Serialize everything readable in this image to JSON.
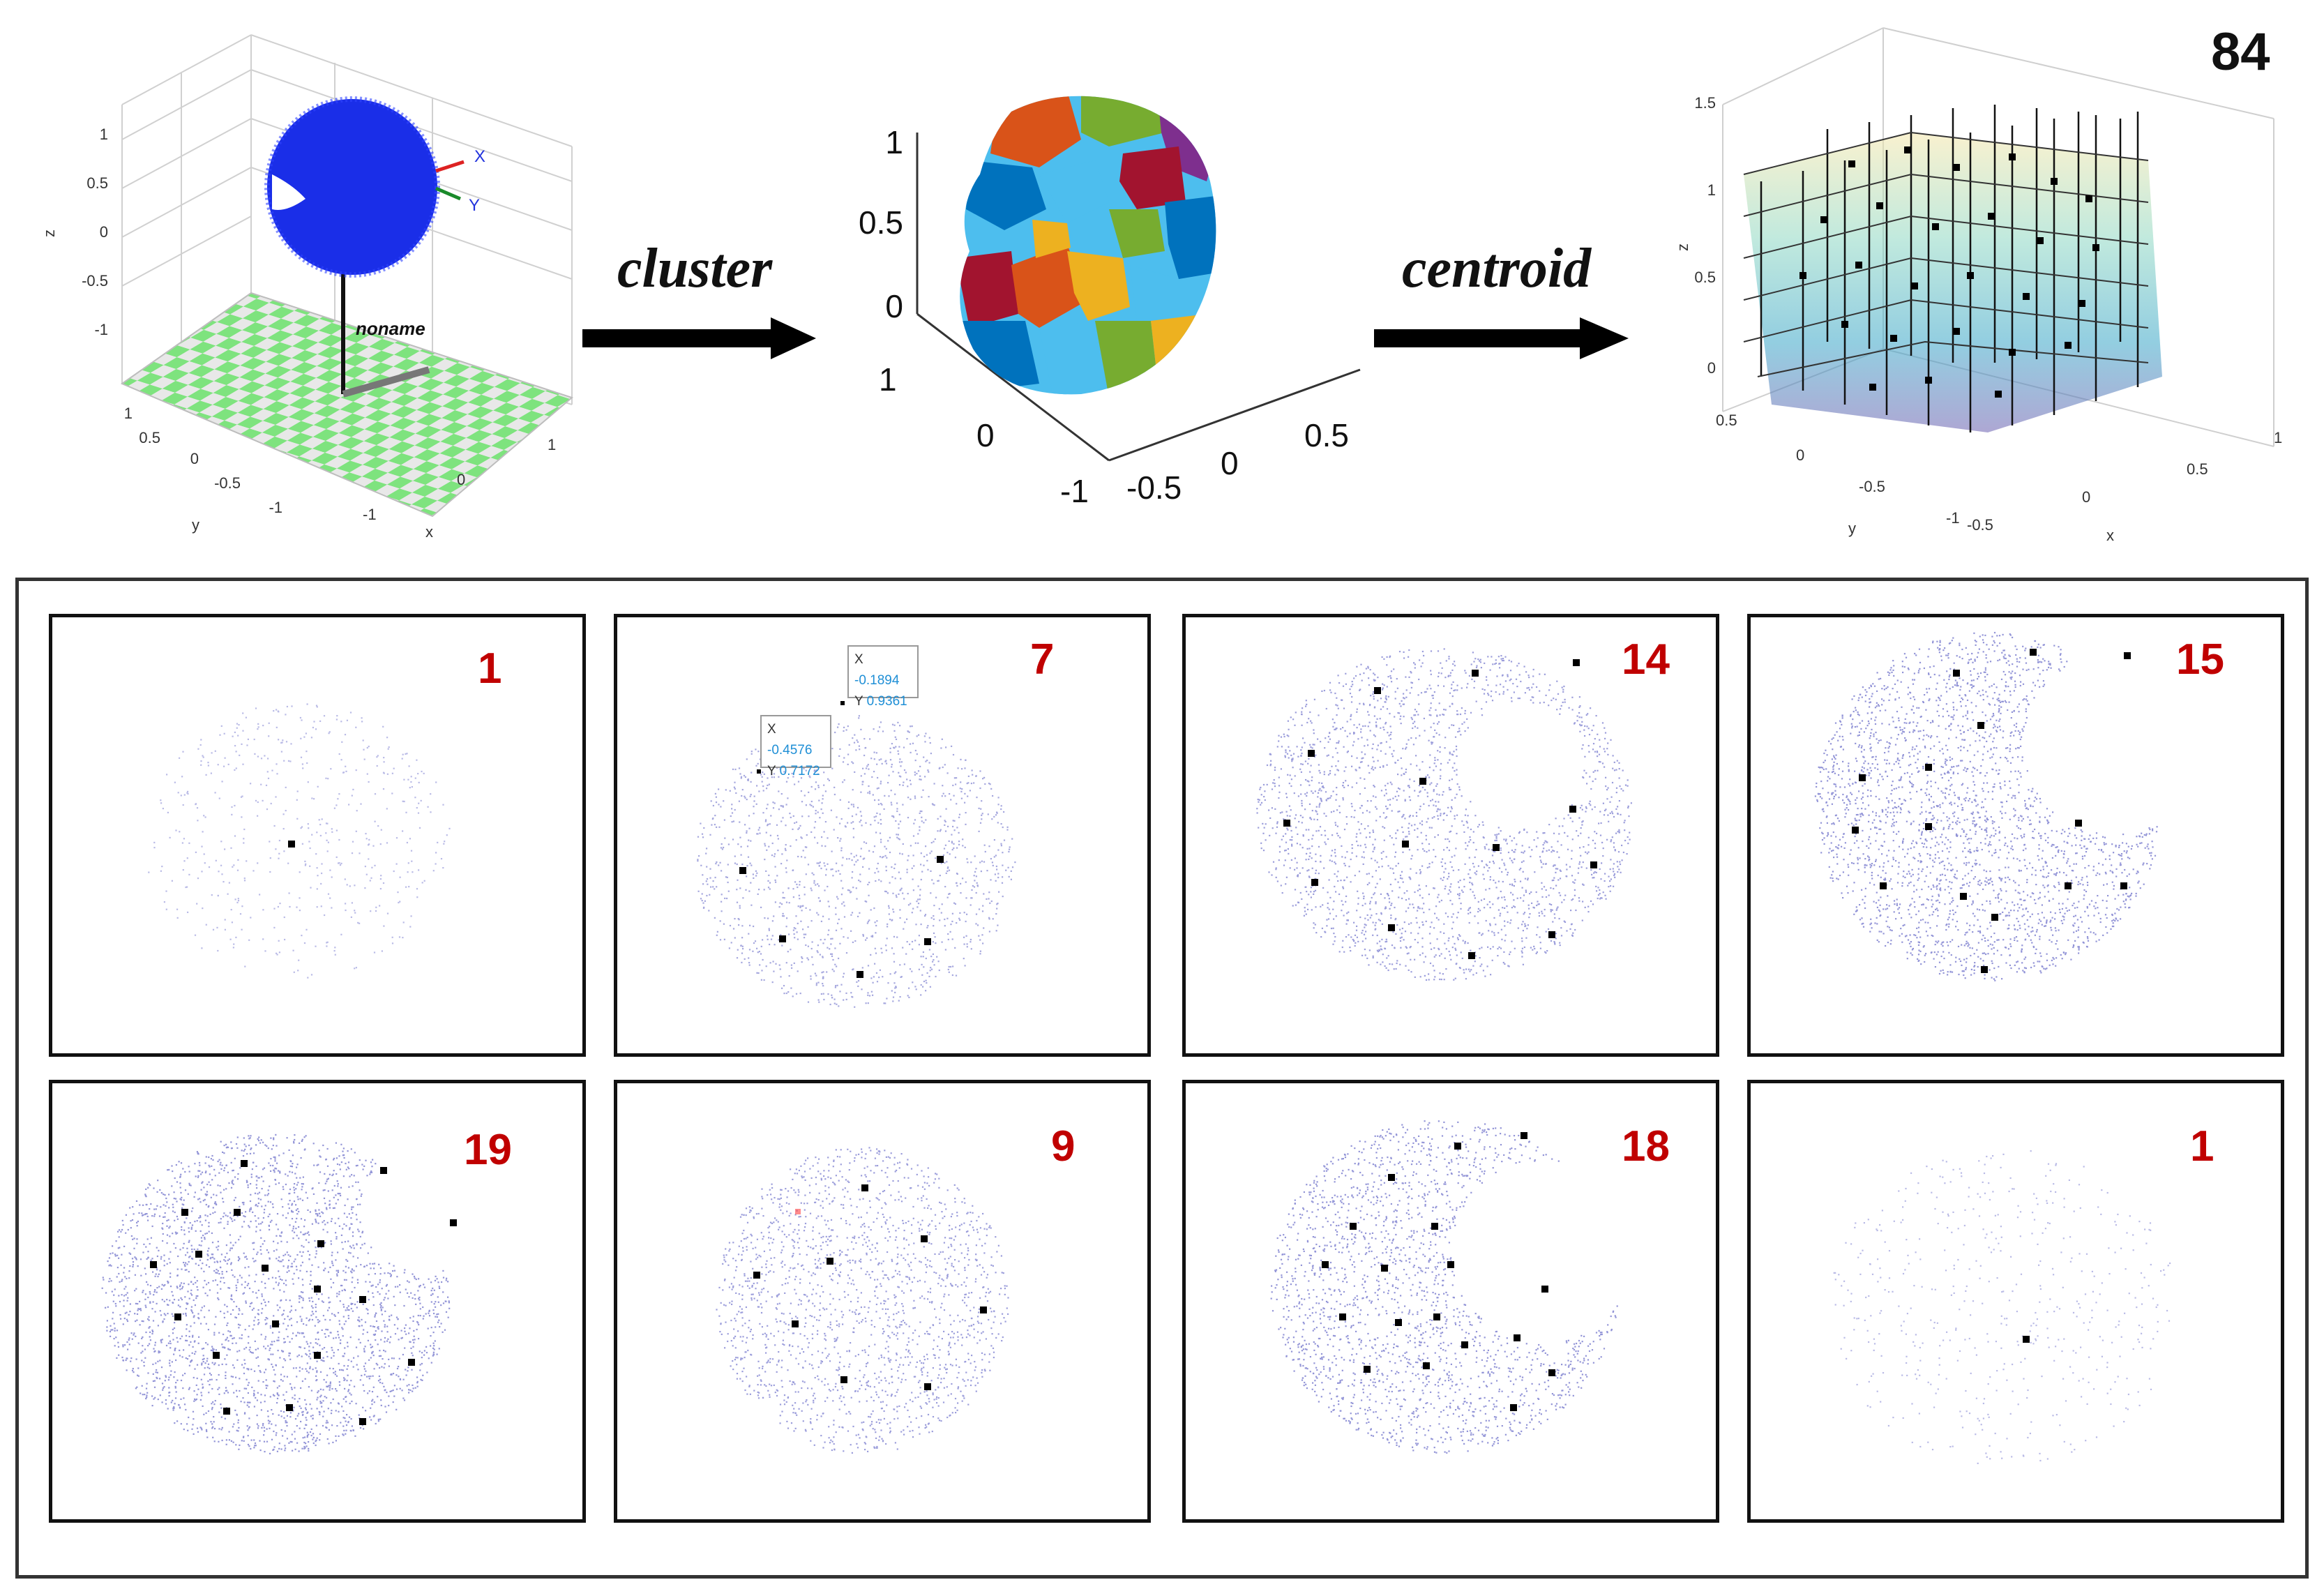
{
  "top": {
    "fig1": {
      "axis_z": "z",
      "axis_y": "y",
      "axis_x": "x",
      "z_ticks": [
        "1",
        "0.5",
        "0",
        "-0.5",
        "-1"
      ],
      "y_ticks": [
        "1",
        "0.5",
        "0",
        "-0.5",
        "-1"
      ],
      "x_ticks": [
        "-1",
        "0",
        "1"
      ],
      "frame_x": "X",
      "frame_y": "Y",
      "pole_label": "noname",
      "sphere_color": "#1a2ee8",
      "floor_colors": [
        "#7ee37e",
        "#e8e8e8"
      ]
    },
    "arrow1_label": "cluster",
    "fig2": {
      "z_ticks": [
        "1",
        "0.5",
        "0"
      ],
      "y_ticks": [
        "1",
        "0",
        "-1"
      ],
      "x_ticks": [
        "-0.5",
        "0",
        "0.5"
      ],
      "cluster_colors": [
        "#0072bd",
        "#d95319",
        "#edb120",
        "#7e2f8e",
        "#77ac30",
        "#4dbeee",
        "#a2142f"
      ]
    },
    "arrow2_label": "centroid",
    "fig3": {
      "count_label": "84",
      "axis_z": "z",
      "axis_y": "y",
      "axis_x": "x",
      "z_ticks": [
        "1.5",
        "1",
        "0.5",
        "0"
      ],
      "y_ticks": [
        "0.5",
        "0",
        "-0.5",
        "-1"
      ],
      "x_ticks": [
        "-0.5",
        "0",
        "0.5",
        "1"
      ]
    }
  },
  "slices": [
    {
      "count": "1"
    },
    {
      "count": "7",
      "tooltips": [
        {
          "x_label": "X",
          "x_value": "-0.1894",
          "y_label": "Y",
          "y_value": "0.9361"
        },
        {
          "x_label": "X",
          "x_value": "-0.4576",
          "y_label": "Y",
          "y_value": "0.7172"
        }
      ]
    },
    {
      "count": "14"
    },
    {
      "count": "15"
    },
    {
      "count": "19"
    },
    {
      "count": "9"
    },
    {
      "count": "18"
    },
    {
      "count": "1"
    }
  ],
  "colors": {
    "count_text": "#c00000",
    "point_cloud": "#3b3fb8",
    "centroid": "#000000",
    "tooltip_value": "#1f8fd6"
  }
}
